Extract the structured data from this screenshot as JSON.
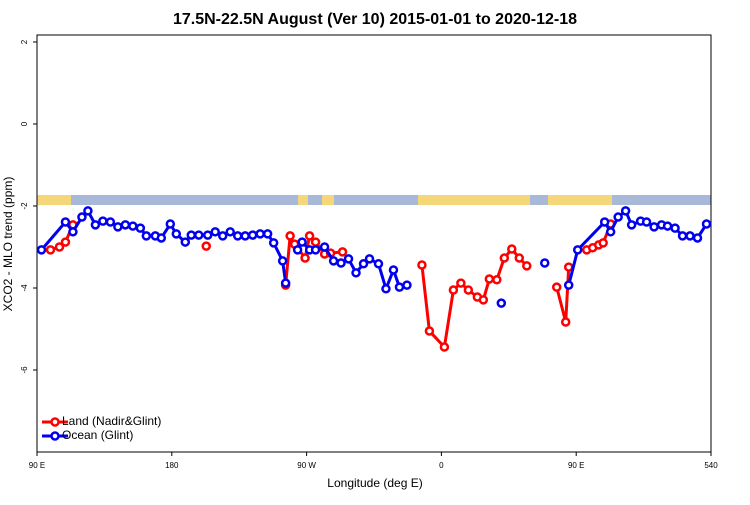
{
  "chart_data": {
    "type": "line",
    "title": "17.5N-22.5N August (Ver 10)   2015-01-01 to 2020-12-18",
    "x_label": "Longitude (deg E)",
    "y_label": "XCO2 - MLO trend (ppm)",
    "xlim": [
      90,
      540
    ],
    "xticks": [
      {
        "value": 90,
        "label": "90 E"
      },
      180,
      {
        "value": 270,
        "label": "90 W"
      },
      {
        "value": 360,
        "label": "0"
      },
      {
        "value": 450,
        "label": "90 E"
      },
      540
    ],
    "ylim": [
      -8,
      2.17
    ],
    "yticks": [
      -6,
      -4,
      -2,
      0,
      2
    ],
    "legend": "bottom-left",
    "series": [
      {
        "name": "Land (Nadir&Glint)",
        "color": "#ff0000",
        "x": [
          99,
          105,
          109,
          114,
          null,
          203,
          null,
          256,
          259,
          262,
          269,
          272,
          276,
          282,
          286,
          294,
          null,
          347,
          352,
          362,
          368,
          373,
          378,
          384,
          388,
          392,
          397,
          402,
          407,
          412,
          417,
          null,
          437,
          443,
          445,
          null,
          457,
          461,
          465,
          468,
          473
        ],
        "values": [
          -3.07,
          -3.0,
          -2.88,
          -2.46,
          null,
          -2.98,
          null,
          -3.93,
          -2.73,
          -2.93,
          -3.27,
          -2.73,
          -2.88,
          -3.17,
          -3.15,
          -3.12,
          null,
          -3.44,
          -5.05,
          -5.44,
          -4.05,
          -3.88,
          -4.05,
          -4.22,
          -4.29,
          -3.78,
          -3.8,
          -3.27,
          -3.05,
          -3.27,
          -3.46,
          null,
          -3.98,
          -4.83,
          -3.49,
          null,
          -3.07,
          -3.02,
          -2.95,
          -2.9,
          -2.44
        ]
      },
      {
        "name": "Ocean (Glint)",
        "color": "#0000ee",
        "x": [
          93,
          109,
          114,
          120,
          124,
          129,
          134,
          139,
          144,
          149,
          154,
          159,
          163,
          169,
          173,
          179,
          183,
          189,
          193,
          198,
          204,
          209,
          214,
          219,
          224,
          229,
          234,
          239,
          244,
          248,
          254,
          256,
          null,
          264,
          267,
          272,
          276,
          282,
          288,
          293,
          298,
          303,
          308,
          312,
          318,
          323,
          328,
          332,
          337,
          null,
          400,
          null,
          429,
          null,
          445,
          451,
          469,
          473,
          478,
          483,
          487,
          493,
          497,
          502,
          507,
          511,
          516,
          521,
          526,
          531,
          537
        ],
        "values": [
          -3.07,
          -2.39,
          -2.63,
          -2.27,
          -2.12,
          -2.46,
          -2.37,
          -2.39,
          -2.51,
          -2.46,
          -2.49,
          -2.54,
          -2.73,
          -2.73,
          -2.78,
          -2.44,
          -2.68,
          -2.88,
          -2.71,
          -2.71,
          -2.71,
          -2.63,
          -2.73,
          -2.63,
          -2.73,
          -2.73,
          -2.71,
          -2.68,
          -2.68,
          -2.9,
          -3.34,
          -3.88,
          null,
          -3.07,
          -2.88,
          -3.07,
          -3.07,
          -3.0,
          -3.34,
          -3.39,
          -3.29,
          -3.63,
          -3.41,
          -3.29,
          -3.41,
          -4.02,
          -3.56,
          -3.98,
          -3.93,
          null,
          -4.37,
          null,
          -3.39,
          null,
          -3.93,
          -3.07,
          -2.39,
          -2.63,
          -2.27,
          -2.12,
          -2.46,
          -2.37,
          -2.39,
          -2.51,
          -2.46,
          -2.49,
          -2.54,
          -2.73,
          -2.73,
          -2.78,
          -2.44
        ]
      }
    ]
  }
}
